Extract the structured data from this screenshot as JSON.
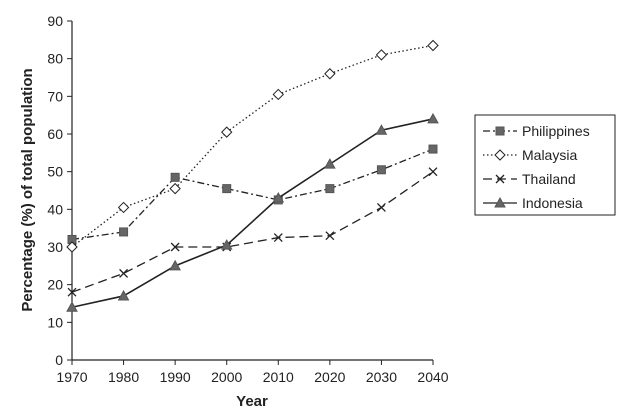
{
  "chart_data": {
    "type": "line",
    "title": "",
    "xlabel": "Year",
    "ylabel": "Percentage (%) of total population",
    "x": [
      1970,
      1980,
      1990,
      2000,
      2010,
      2020,
      2030,
      2040
    ],
    "xlim": [
      1970,
      2040
    ],
    "ylim": [
      0,
      90
    ],
    "yticks": [
      0,
      10,
      20,
      30,
      40,
      50,
      60,
      70,
      80,
      90
    ],
    "grid": false,
    "legend_position": "right",
    "series": [
      {
        "name": "Philippines",
        "style": "dash-dot",
        "marker": "square",
        "values": [
          32,
          34,
          48.5,
          45.5,
          42.5,
          45.5,
          50.5,
          56
        ]
      },
      {
        "name": "Malaysia",
        "style": "dotted",
        "marker": "diamond",
        "values": [
          30,
          40.5,
          45.5,
          60.5,
          70.5,
          76,
          81,
          83.5
        ]
      },
      {
        "name": "Thailand",
        "style": "dashed",
        "marker": "x",
        "values": [
          18,
          23,
          30,
          30,
          32.5,
          33,
          40.5,
          50
        ]
      },
      {
        "name": "Indonesia",
        "style": "solid",
        "marker": "triangle",
        "values": [
          14,
          17,
          25,
          30.5,
          43,
          52,
          61,
          64
        ]
      }
    ]
  }
}
